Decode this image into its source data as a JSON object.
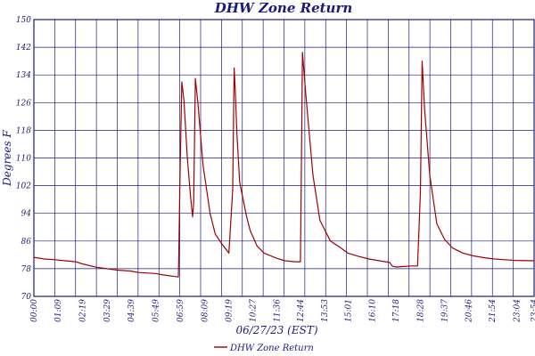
{
  "chart_data": {
    "type": "line",
    "title": "DHW Zone Return",
    "xlabel": "06/27/23 (EST)",
    "ylabel": "Degrees F",
    "ylim": [
      70,
      150
    ],
    "yticks": [
      70,
      78,
      86,
      94,
      102,
      110,
      118,
      126,
      134,
      142,
      150
    ],
    "xlim": [
      "00:00",
      "23:54"
    ],
    "xtick_labels": [
      "00:00",
      "01:09",
      "02:19",
      "03:29",
      "04:39",
      "05:49",
      "06:59",
      "08:09",
      "09:19",
      "10:27",
      "11:36",
      "12:44",
      "13:53",
      "15:01",
      "16:10",
      "17:18",
      "18:28",
      "19:37",
      "20:46",
      "21:54",
      "23:04",
      "23:54"
    ],
    "grid": true,
    "legend": "bottom",
    "colors": {
      "series": "#a00000",
      "grid": "#1a1a7a",
      "text": "#1a1a7a"
    },
    "series": [
      {
        "name": "DHW Zone Return",
        "x": [
          "00:00",
          "00:30",
          "01:00",
          "01:30",
          "02:00",
          "02:19",
          "03:00",
          "03:29",
          "04:00",
          "04:39",
          "05:00",
          "05:49",
          "06:10",
          "06:54",
          "06:55",
          "06:59",
          "07:04",
          "07:10",
          "07:20",
          "07:30",
          "07:35",
          "07:38",
          "07:43",
          "07:50",
          "08:05",
          "08:25",
          "08:40",
          "09:00",
          "09:19",
          "09:30",
          "09:34",
          "09:38",
          "09:42",
          "09:50",
          "10:00",
          "10:10",
          "10:20",
          "10:40",
          "11:00",
          "11:36",
          "12:00",
          "12:30",
          "12:44",
          "12:46",
          "12:50",
          "13:00",
          "13:20",
          "13:40",
          "14:10",
          "14:40",
          "15:00",
          "15:30",
          "16:00",
          "16:30",
          "17:00",
          "17:08",
          "17:20",
          "18:00",
          "18:20",
          "18:28",
          "18:33",
          "18:40",
          "18:55",
          "19:15",
          "19:37",
          "20:00",
          "20:30",
          "21:00",
          "21:30",
          "22:00",
          "22:30",
          "23:00",
          "23:54"
        ],
        "y": [
          81.3,
          80.8,
          80.6,
          80.3,
          80.0,
          79.4,
          78.4,
          78.0,
          77.6,
          77.3,
          76.9,
          76.6,
          76.2,
          75.6,
          80.0,
          105.0,
          132.0,
          127.0,
          110.0,
          98.0,
          93.0,
          97.0,
          133.0,
          126.0,
          108.0,
          94.0,
          88.0,
          85.0,
          82.5,
          101.0,
          136.0,
          128.0,
          117.0,
          103.0,
          98.0,
          93.0,
          89.0,
          84.5,
          82.5,
          81.0,
          80.3,
          80.0,
          80.0,
          99.0,
          140.5,
          128.0,
          105.0,
          92.0,
          86.0,
          84.0,
          82.5,
          81.6,
          80.8,
          80.3,
          79.8,
          78.7,
          78.5,
          78.8,
          78.8,
          100.0,
          138.0,
          124.0,
          105.0,
          91.0,
          86.5,
          84.0,
          82.5,
          81.7,
          81.2,
          80.8,
          80.6,
          80.4,
          80.3
        ]
      }
    ]
  }
}
